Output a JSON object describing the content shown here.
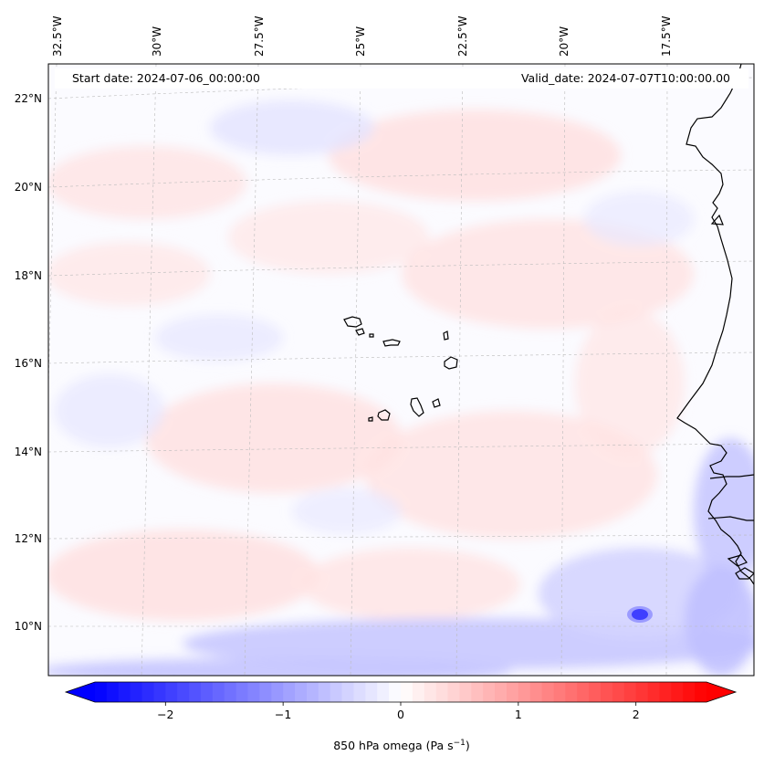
{
  "header": {
    "start_date": "Start date: 2024-07-06_00:00:00",
    "valid_date": "Valid_date: 2024-07-07T10:00:00.00"
  },
  "map": {
    "longitude_labels": [
      "32.5°W",
      "30°W",
      "27.5°W",
      "25°W",
      "22.5°W",
      "20°W",
      "17.5°W"
    ],
    "latitude_labels": [
      "22°N",
      "20°N",
      "18°N",
      "16°N",
      "14°N",
      "12°N",
      "10°N"
    ],
    "coastline_color": "#000000",
    "gridline_color": "#bbbbbb"
  },
  "colorbar": {
    "label_main": "850 hPa omega (Pa s",
    "label_sup": "−1",
    "label_end": ")",
    "ticks": [
      {
        "value": -2,
        "label": "−2"
      },
      {
        "value": -1,
        "label": "−1"
      },
      {
        "value": 0,
        "label": "0"
      },
      {
        "value": 1,
        "label": "1"
      },
      {
        "value": 2,
        "label": "2"
      }
    ],
    "range": [
      -2.6,
      2.6
    ],
    "colormap": "bwr",
    "low_color": "#0000ff",
    "mid_color": "#ffffff",
    "high_color": "#ff0000",
    "extend": "both"
  }
}
